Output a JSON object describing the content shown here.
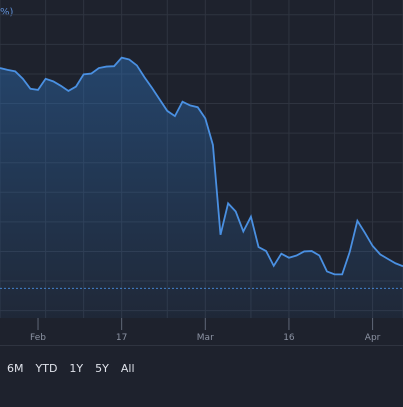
{
  "top_text": "%)",
  "range_buttons": [
    "6M",
    "YTD",
    "1Y",
    "5Y",
    "All"
  ],
  "chart_data": {
    "type": "area",
    "x_ticks": [
      "Feb",
      "17",
      "Mar",
      "16",
      "Apr"
    ],
    "x_tick_positions": [
      5,
      16,
      27,
      38,
      49
    ],
    "x": [
      0,
      1,
      2,
      3,
      4,
      5,
      6,
      7,
      8,
      9,
      10,
      11,
      12,
      13,
      14,
      15,
      16,
      17,
      18,
      19,
      20,
      21,
      22,
      23,
      24,
      25,
      26,
      27,
      28,
      29,
      30,
      31,
      32,
      33,
      34,
      35,
      36,
      37,
      38,
      39,
      40,
      41,
      42,
      43,
      44,
      45,
      46,
      47,
      48,
      49,
      50,
      51,
      52,
      53
    ],
    "values": [
      41.6,
      41.1,
      40.7,
      38.7,
      36.0,
      35.7,
      38.7,
      38.0,
      36.8,
      35.4,
      36.6,
      39.9,
      40.1,
      41.6,
      42.0,
      42.1,
      44.4,
      43.9,
      42.3,
      39.1,
      36.2,
      33.1,
      30.0,
      28.6,
      32.5,
      31.5,
      31.0,
      28.0,
      20.8,
      -3.5,
      5.0,
      2.8,
      -2.6,
      1.4,
      -6.8,
      -7.9,
      -11.9,
      -8.6,
      -9.7,
      -9.1,
      -8.0,
      -7.9,
      -9.1,
      -13.4,
      -14.2,
      -14.2,
      -8.1,
      0.3,
      -3.0,
      -6.5,
      -8.8,
      -10.0,
      -11.2,
      -12.0
    ],
    "ylim": [
      -26,
      60
    ],
    "grid": true,
    "reference_line": -18,
    "colors": {
      "line": "#4a90e2",
      "grid": "#2f3440",
      "reference": "#4a90e2"
    }
  }
}
